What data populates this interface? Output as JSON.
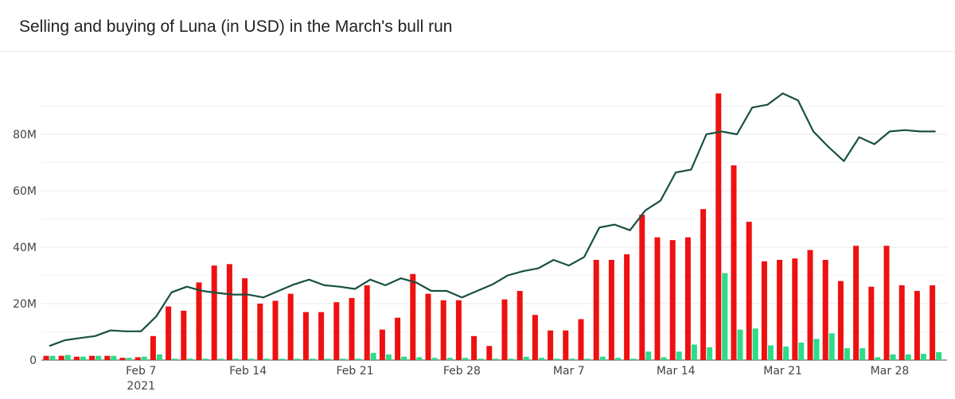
{
  "title": "Selling and buying of Luna (in USD) in the March's bull run",
  "chart_data": {
    "type": "bar",
    "title": "Selling and buying of Luna (in USD) in the March's bull run",
    "ylim": [
      0,
      100000000
    ],
    "yticks": [
      {
        "value": 0,
        "label": "0"
      },
      {
        "value": 20000000,
        "label": "20M"
      },
      {
        "value": 40000000,
        "label": "40M"
      },
      {
        "value": 60000000,
        "label": "60M"
      },
      {
        "value": 80000000,
        "label": "80M"
      }
    ],
    "xticks": [
      {
        "date": "2021-02-07",
        "label": "Feb 7",
        "sublabel": "2021"
      },
      {
        "date": "2021-02-14",
        "label": "Feb 14",
        "sublabel": ""
      },
      {
        "date": "2021-02-21",
        "label": "Feb 21",
        "sublabel": ""
      },
      {
        "date": "2021-02-28",
        "label": "Feb 28",
        "sublabel": ""
      },
      {
        "date": "2021-03-07",
        "label": "Mar 7",
        "sublabel": ""
      },
      {
        "date": "2021-03-14",
        "label": "Mar 14",
        "sublabel": ""
      },
      {
        "date": "2021-03-21",
        "label": "Mar 21",
        "sublabel": ""
      },
      {
        "date": "2021-03-28",
        "label": "Mar 28",
        "sublabel": ""
      }
    ],
    "grid": true,
    "dates": [
      "2021-02-01",
      "2021-02-02",
      "2021-02-03",
      "2021-02-04",
      "2021-02-05",
      "2021-02-06",
      "2021-02-07",
      "2021-02-08",
      "2021-02-09",
      "2021-02-10",
      "2021-02-11",
      "2021-02-12",
      "2021-02-13",
      "2021-02-14",
      "2021-02-15",
      "2021-02-16",
      "2021-02-17",
      "2021-02-18",
      "2021-02-19",
      "2021-02-20",
      "2021-02-21",
      "2021-02-22",
      "2021-02-23",
      "2021-02-24",
      "2021-02-25",
      "2021-02-26",
      "2021-02-27",
      "2021-02-28",
      "2021-03-01",
      "2021-03-02",
      "2021-03-03",
      "2021-03-04",
      "2021-03-05",
      "2021-03-06",
      "2021-03-07",
      "2021-03-08",
      "2021-03-09",
      "2021-03-10",
      "2021-03-11",
      "2021-03-12",
      "2021-03-13",
      "2021-03-14",
      "2021-03-15",
      "2021-03-16",
      "2021-03-17",
      "2021-03-18",
      "2021-03-19",
      "2021-03-20",
      "2021-03-21",
      "2021-03-22",
      "2021-03-23",
      "2021-03-24",
      "2021-03-25",
      "2021-03-26",
      "2021-03-27",
      "2021-03-28",
      "2021-03-29",
      "2021-03-30",
      "2021-03-31"
    ],
    "series": [
      {
        "kind": "bar",
        "color": "#ee1111",
        "values": [
          1.5,
          1.5,
          1.2,
          1.5,
          1.5,
          0.8,
          1.0,
          8.5,
          19,
          17.5,
          27.5,
          33.5,
          34,
          29,
          20,
          21,
          23.5,
          17,
          17,
          20.5,
          22,
          26.5,
          10.8,
          15,
          30.5,
          23.5,
          21.2,
          21.2,
          8.5,
          5,
          21.5,
          24.5,
          16,
          10.5,
          10.5,
          14.5,
          35.5,
          35.5,
          37.5,
          51.5,
          43.5,
          42.5,
          43.5,
          53.5,
          94.5,
          69,
          49,
          35,
          35.5,
          36,
          39,
          35.5,
          28,
          40.5,
          26,
          40.5,
          26.5,
          24.5,
          26.5
        ]
      },
      {
        "kind": "bar",
        "color": "#2ddc88",
        "values": [
          1.5,
          1.8,
          1.2,
          1.5,
          1.5,
          0.8,
          1.2,
          2.0,
          0.5,
          0.5,
          0.5,
          0.5,
          0.5,
          0.5,
          0.5,
          0.5,
          0.5,
          0.5,
          0.5,
          0.5,
          0.5,
          2.5,
          2.0,
          1.2,
          1.0,
          0.8,
          0.8,
          0.8,
          0.5,
          0.5,
          0.5,
          1.2,
          0.8,
          0.5,
          0.5,
          0.5,
          1.2,
          0.8,
          0.5,
          3.0,
          1.0,
          3.0,
          5.5,
          4.5,
          30.8,
          10.8,
          11.2,
          5.2,
          4.8,
          6.2,
          7.5,
          9.5,
          4.2,
          4.2,
          1.0,
          2.0,
          2.0,
          2.2,
          2.8
        ]
      },
      {
        "kind": "line",
        "color": "#18503f",
        "values": [
          5,
          7,
          7.8,
          8.5,
          10.5,
          10.2,
          10.2,
          15.5,
          24,
          26,
          24.5,
          23.8,
          23.2,
          23.2,
          22.2,
          24.5,
          26.8,
          28.5,
          26.5,
          26,
          25.2,
          28.5,
          26.5,
          29,
          27.5,
          24.5,
          24.5,
          22.2,
          24.5,
          26.8,
          30,
          31.5,
          32.5,
          35.5,
          33.5,
          36.5,
          47,
          48,
          46,
          53,
          56.5,
          66.5,
          67.5,
          80,
          81,
          80,
          89.5,
          90.5,
          94.5,
          92,
          81,
          75.5,
          70.5,
          79,
          76.5,
          81,
          81.5,
          81,
          81
        ]
      }
    ]
  }
}
